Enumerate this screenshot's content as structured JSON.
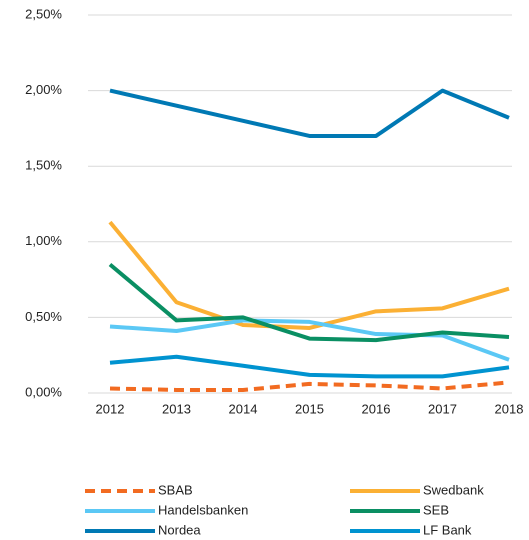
{
  "chart_data": {
    "type": "line",
    "categories": [
      "2012",
      "2013",
      "2014",
      "2015",
      "2016",
      "2017",
      "2018"
    ],
    "series": [
      {
        "name": "SBAB",
        "color": "#f26b21",
        "style": "dashed",
        "values": [
          0.03,
          0.02,
          0.02,
          0.06,
          0.05,
          0.03,
          0.07
        ]
      },
      {
        "name": "Swedbank",
        "color": "#fbb034",
        "style": "solid",
        "values": [
          1.13,
          0.6,
          0.45,
          0.43,
          0.54,
          0.56,
          0.69
        ]
      },
      {
        "name": "Handelsbanken",
        "color": "#5bc8f5",
        "style": "solid",
        "values": [
          0.44,
          0.41,
          0.48,
          0.47,
          0.39,
          0.38,
          0.22
        ]
      },
      {
        "name": "SEB",
        "color": "#0a8f63",
        "style": "solid",
        "values": [
          0.85,
          0.48,
          0.5,
          0.36,
          0.35,
          0.4,
          0.37
        ]
      },
      {
        "name": "Nordea",
        "color": "#0079b4",
        "style": "solid",
        "values": [
          2.0,
          1.9,
          1.8,
          1.7,
          1.7,
          2.0,
          1.82
        ]
      },
      {
        "name": "LF Bank",
        "color": "#0093d0",
        "style": "solid",
        "values": [
          0.2,
          0.24,
          0.18,
          0.12,
          0.11,
          0.11,
          0.17
        ]
      }
    ],
    "ylim": [
      0,
      2.5
    ],
    "yticks": [
      {
        "value": 0,
        "label": "0,00%"
      },
      {
        "value": 0.5,
        "label": "0,50%"
      },
      {
        "value": 1,
        "label": "1,00%"
      },
      {
        "value": 1.5,
        "label": "1,50%"
      },
      {
        "value": 2,
        "label": "2,00%"
      },
      {
        "value": 2.5,
        "label": "2,50%"
      }
    ],
    "grid": true,
    "legend": "bottom"
  }
}
